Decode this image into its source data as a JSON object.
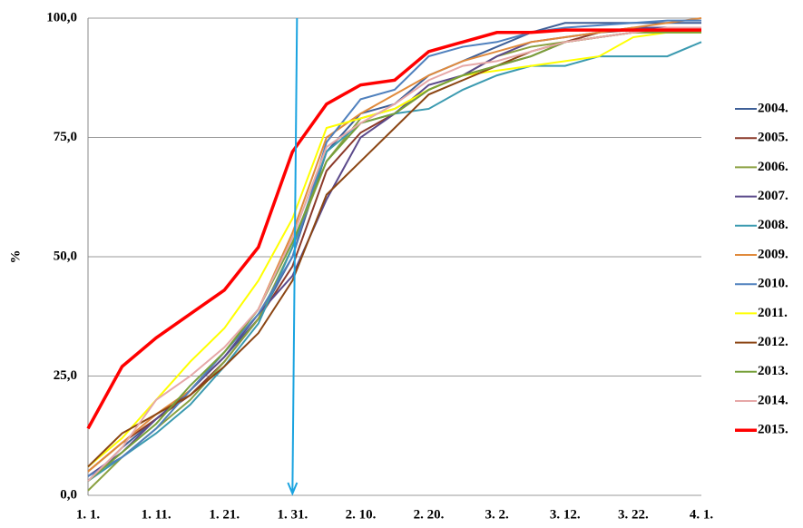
{
  "chart_data": {
    "type": "line",
    "y_label": "%",
    "categories": [
      "1. 1.",
      null,
      "1. 11.",
      null,
      "1. 21.",
      null,
      "1. 31.",
      null,
      "2. 10.",
      null,
      "2. 20.",
      null,
      "3. 2.",
      null,
      "3. 12.",
      null,
      "3. 22.",
      null,
      "4. 1."
    ],
    "ylim": [
      0,
      100
    ],
    "yticks": [
      {
        "value": 0,
        "label": "0,0"
      },
      {
        "value": 25,
        "label": "25,0"
      },
      {
        "value": 50,
        "label": "50,0"
      },
      {
        "value": 75,
        "label": "75,0"
      },
      {
        "value": 100,
        "label": "100,0"
      }
    ],
    "grid": true,
    "legend": "right",
    "series": [
      {
        "name": "2004.",
        "color": "#3e5f97",
        "values": [
          3,
          10,
          16,
          22,
          29,
          37,
          50,
          72,
          80,
          82,
          88,
          91,
          94,
          97,
          99,
          99,
          99,
          99,
          99
        ]
      },
      {
        "name": "2005.",
        "color": "#8b3a2a",
        "values": [
          5,
          11,
          16,
          21,
          28,
          37,
          48,
          68,
          76,
          80,
          85,
          88,
          90,
          92,
          95,
          97,
          97.5,
          98,
          98
        ]
      },
      {
        "name": "2006.",
        "color": "#8aa040",
        "values": [
          1,
          8,
          14,
          20,
          28,
          37,
          52,
          70,
          79,
          81,
          85,
          88,
          92,
          94,
          95,
          96,
          97,
          97,
          97
        ]
      },
      {
        "name": "2007.",
        "color": "#5b4a8b",
        "values": [
          4,
          9,
          16,
          22,
          29,
          38,
          46,
          62,
          75,
          80,
          86,
          88,
          92,
          95,
          96,
          97,
          98,
          98,
          98
        ]
      },
      {
        "name": "2008.",
        "color": "#3b9ab0",
        "values": [
          3,
          8,
          13,
          19,
          27,
          36,
          52,
          72,
          78,
          80,
          81,
          85,
          88,
          90,
          90,
          92,
          92,
          92,
          95
        ]
      },
      {
        "name": "2009.",
        "color": "#e08a3c",
        "values": [
          5,
          11,
          17,
          22,
          30,
          39,
          55,
          75,
          80,
          84,
          88,
          91,
          93,
          95,
          96,
          97,
          98,
          99,
          100
        ]
      },
      {
        "name": "2010.",
        "color": "#4f80bd",
        "values": [
          4,
          8,
          14,
          22,
          30,
          38,
          50,
          74,
          83,
          85,
          92,
          94,
          95,
          97,
          98,
          98.5,
          99,
          99.5,
          99.5
        ]
      },
      {
        "name": "2011.",
        "color": "#ffff00",
        "values": [
          6,
          12,
          20,
          28,
          35,
          45,
          58,
          77,
          79,
          81,
          85,
          88,
          89,
          90,
          91,
          92,
          96,
          97,
          97
        ]
      },
      {
        "name": "2012.",
        "color": "#8b4513",
        "values": [
          6,
          13,
          17,
          21,
          27,
          34,
          45,
          63,
          70,
          77,
          84,
          87,
          90,
          93,
          95,
          96,
          97,
          98,
          98
        ]
      },
      {
        "name": "2013.",
        "color": "#77a03a",
        "values": [
          3,
          9,
          15,
          23,
          30,
          39,
          53,
          70,
          78,
          80,
          85,
          88,
          90,
          92,
          95,
          96,
          97,
          97,
          97
        ]
      },
      {
        "name": "2014.",
        "color": "#e6a8a8",
        "values": [
          3,
          10,
          20,
          25,
          31,
          39,
          54,
          73,
          78,
          82,
          87,
          90,
          91,
          93,
          95,
          96,
          97,
          98,
          98
        ]
      },
      {
        "name": "2015.",
        "color": "#ff0000",
        "values": [
          14,
          27,
          33,
          38,
          43,
          52,
          72,
          82,
          86,
          87,
          93,
          95,
          97,
          97,
          97.5,
          97.5,
          97.5,
          97.5,
          97.5
        ]
      }
    ]
  }
}
